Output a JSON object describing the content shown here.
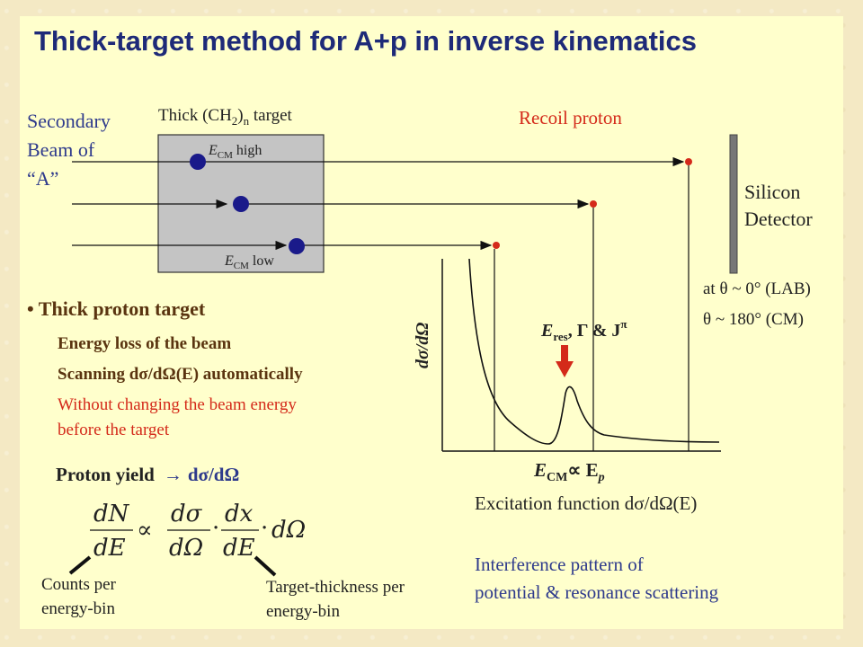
{
  "title": "Thick-target method for A+p in inverse kinematics",
  "beam_label": [
    "Secondary",
    "Beam of",
    "“A”"
  ],
  "target_label_pre": "Thick (CH",
  "target_label_sub": "2",
  "target_label_mid": ")",
  "target_label_sub2": "n",
  "target_label_post": " target",
  "ecm_high": "high",
  "ecm_low": "low",
  "ecm_symbol": "E",
  "ecm_sub": "CM",
  "recoil_label": "Recoil proton",
  "detector_label": [
    "Silicon",
    "Detector"
  ],
  "angle_lab": "at θ ~ 0° (LAB)",
  "angle_cm": "θ ~ 180° (CM)",
  "bullet_heading": "• Thick proton target",
  "bullet_1": "Energy loss of the beam",
  "bullet_2": "Scanning dσ/dΩ(E) automatically",
  "bullet_3": [
    "Without changing the beam energy",
    "before the target"
  ],
  "yield_label": "Proton yield",
  "yield_arrow": "→",
  "yield_target": "dσ/dΩ",
  "counts_label": [
    "Counts per",
    "energy-bin"
  ],
  "thickness_label": [
    "Target-thickness per",
    "energy-bin"
  ],
  "plot_ylabel": "dσ/dΩ",
  "resonance_label": "E",
  "resonance_sub": "res",
  "resonance_rest": ", Γ & J",
  "resonance_sup": "π",
  "plot_xlabel_a": "E",
  "plot_xlabel_sub": "CM",
  "plot_xlabel_b": "∝ E",
  "plot_xlabel_sub2": "p",
  "excitation_label": "Excitation function dσ/dΩ(E)",
  "interference_label": [
    "Interference pattern of",
    "potential & resonance scattering"
  ],
  "colors": {
    "title": "#1e2a78",
    "recoil": "#d42a1a",
    "beam_dot": "#1a1a8a",
    "panel": "#ffffcc"
  },
  "chart_data": {
    "type": "line",
    "xlabel": "E_CM ∝ E_p",
    "ylabel": "dσ/dΩ",
    "series": [
      {
        "name": "",
        "shape": "falling potential-scattering curve with a resonance peak at E_res"
      }
    ]
  }
}
